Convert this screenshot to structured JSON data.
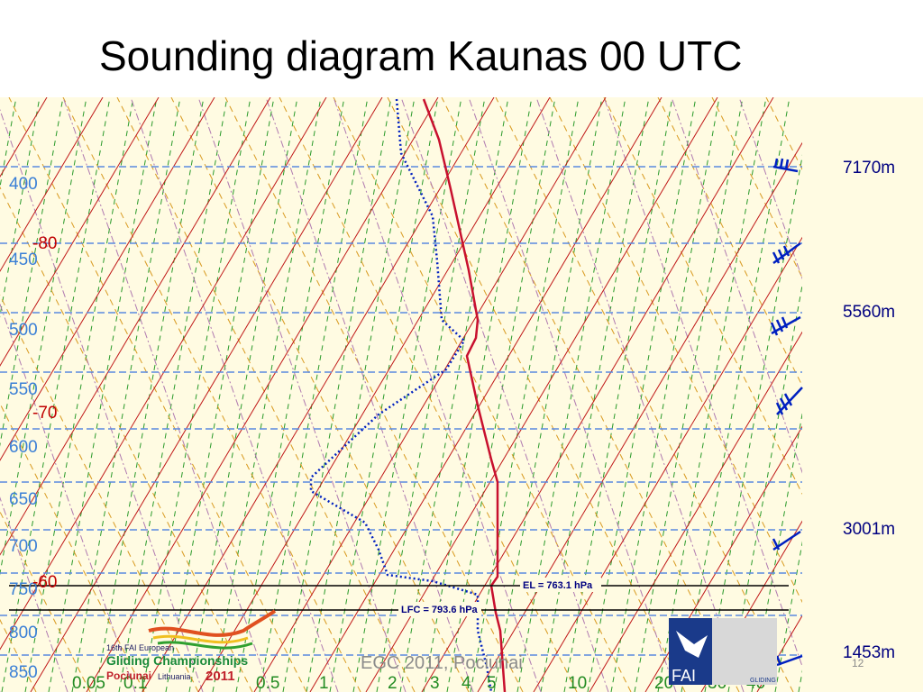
{
  "title": "Sounding diagram Kaunas 00 UTC",
  "diagram": {
    "pressure_labels": [
      "400",
      "450",
      "500",
      "550",
      "600",
      "650",
      "700",
      "750",
      "800",
      "850"
    ],
    "temperature_labels": [
      "-80",
      "-70",
      "-60"
    ],
    "height_labels": [
      "7170m",
      "5560m",
      "3001m",
      "1453m"
    ],
    "mixing_ratio_labels": [
      "0.05",
      "0.1",
      "0.5",
      "1",
      "2",
      "3",
      "4",
      "5",
      "10",
      "20",
      "30",
      "40"
    ],
    "el_label": "EL = 763.1 hPa",
    "lfc_label": "LFC = 793.6 hPa"
  },
  "footer": {
    "event": "EGC 2011, Pociunai",
    "page": "12"
  },
  "logos": {
    "event_line1": "16th FAI European",
    "event_line2": "Gliding Championships",
    "event_place": "Pociunai",
    "event_country": "Lithuania",
    "event_year": "2011",
    "fai": "FAI",
    "fai_sub": "GLIDING"
  }
}
